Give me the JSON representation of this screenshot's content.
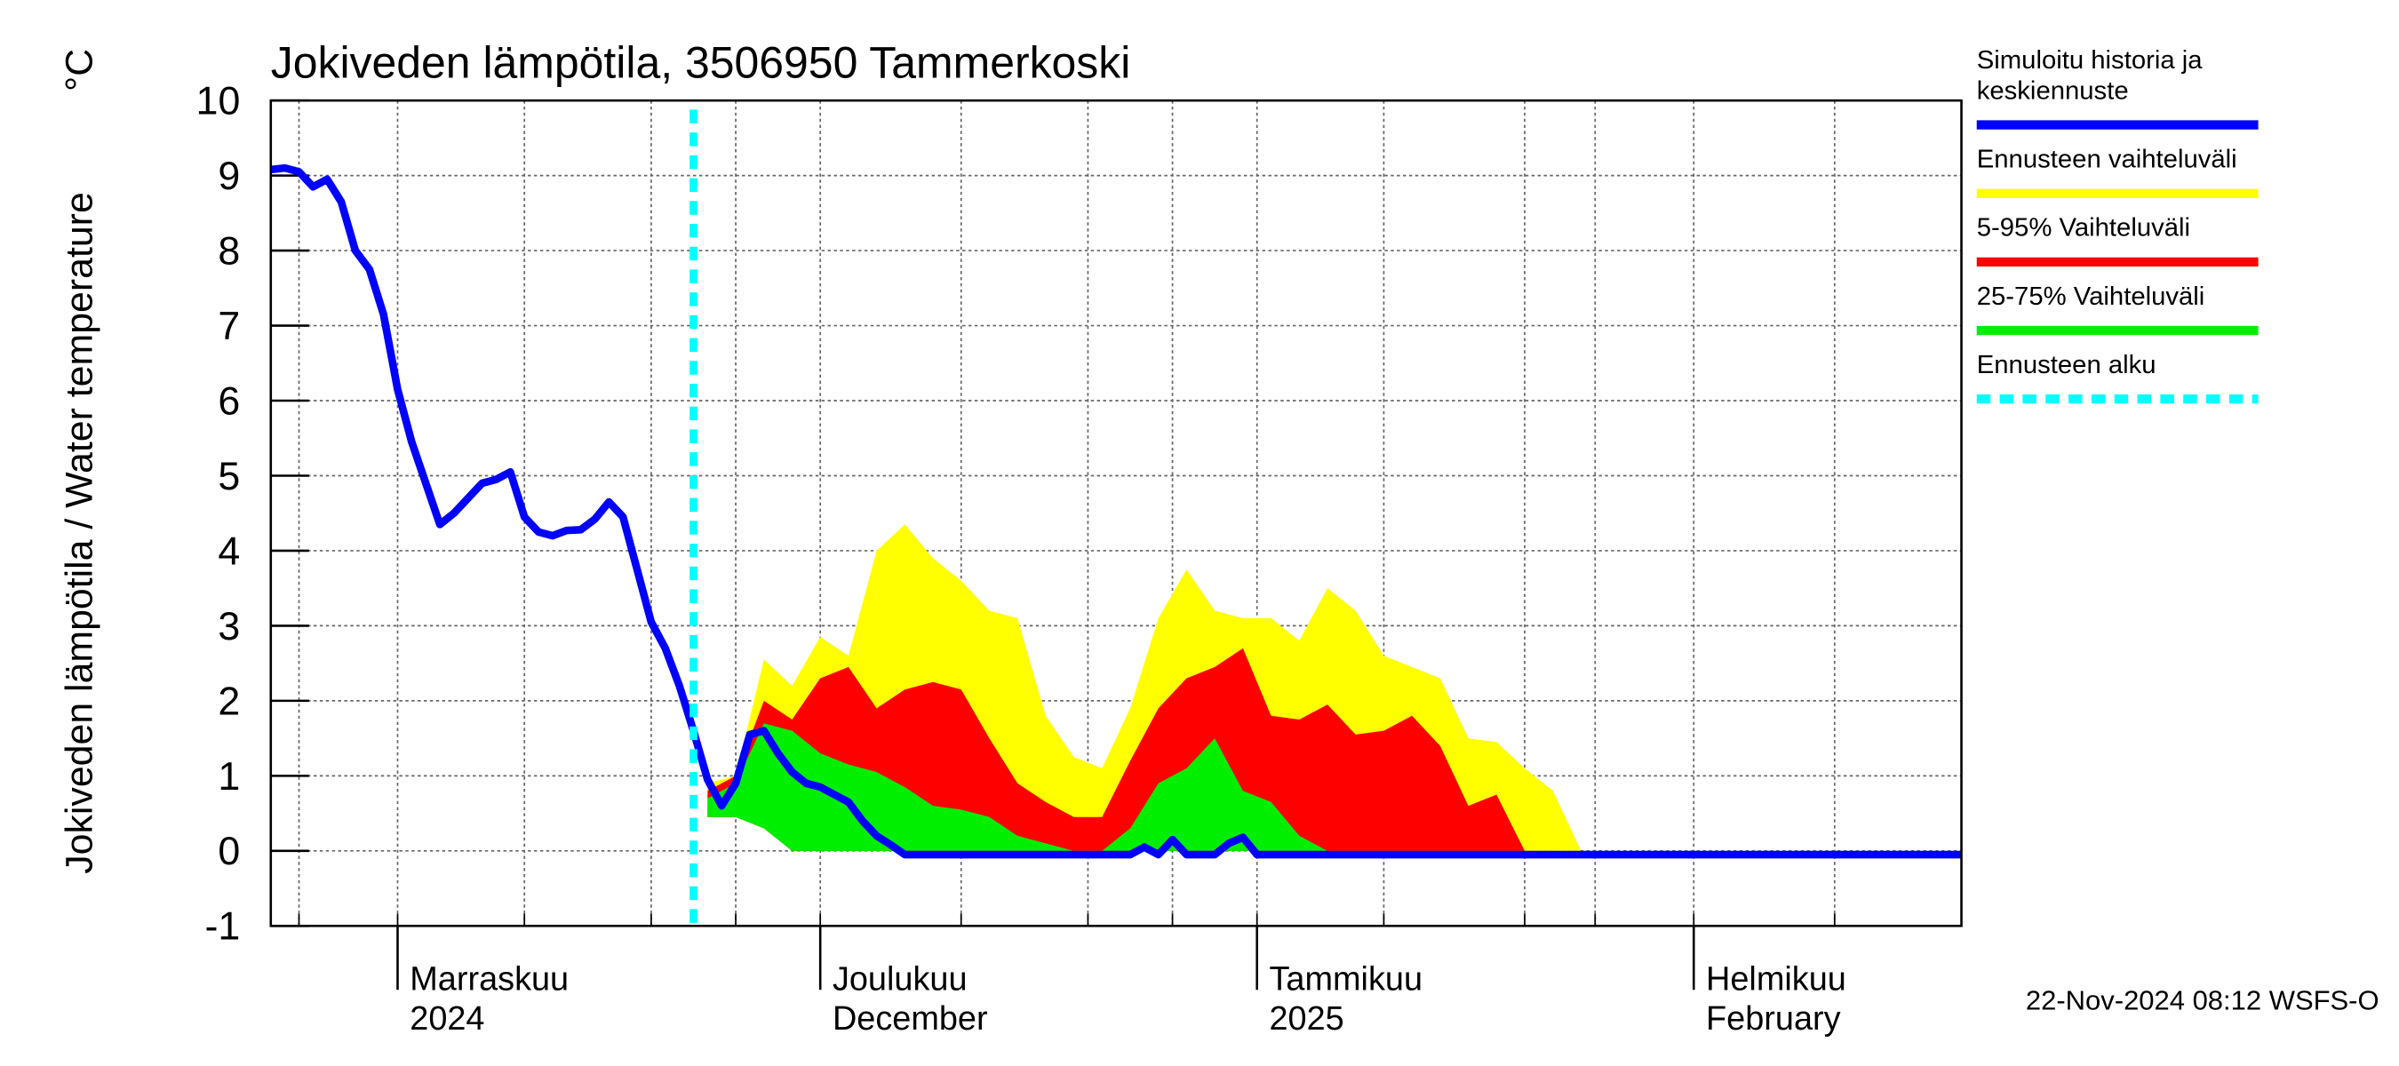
{
  "chart_data": {
    "type": "line",
    "title": "Jokiveden lämpötila, 3506950 Tammerkoski",
    "ylabel": "Jokiveden lämpötila / Water temperature",
    "yunit": "°C",
    "footer": "22-Nov-2024 08:12 WSFS-O",
    "ylim": [
      -1,
      10
    ],
    "yticks": [
      -1,
      0,
      1,
      2,
      3,
      4,
      5,
      6,
      7,
      8,
      9,
      10
    ],
    "xlim": [
      0,
      120
    ],
    "xticks": [
      {
        "value": 9,
        "label": "Marraskuu",
        "label2": "2024"
      },
      {
        "value": 39,
        "label": "Joulukuu",
        "label2": "December"
      },
      {
        "value": 70,
        "label": "Tammikuu",
        "label2": "2025"
      },
      {
        "value": 101,
        "label": "Helmikuu",
        "label2": "February"
      }
    ],
    "xgrid": [
      2,
      9,
      18,
      27,
      33,
      39,
      49,
      58,
      64,
      70,
      79,
      89,
      94,
      101,
      111
    ],
    "grid": true,
    "forecast_start": {
      "name": "Ennusteen alku",
      "color": "#00ffff",
      "x": 30
    },
    "series": [
      {
        "name": "Simuloitu historia ja keskiennuste",
        "color": "#0000ff",
        "x": [
          0,
          1,
          2,
          3,
          4,
          5,
          6,
          7,
          8,
          9,
          10,
          11,
          12,
          13,
          14,
          15,
          16,
          17,
          18,
          19,
          20,
          21,
          22,
          23,
          24,
          25,
          26,
          27,
          28,
          29,
          30,
          31,
          32,
          33,
          34,
          35,
          36,
          37,
          38,
          39,
          40,
          41,
          42,
          43,
          44,
          45,
          46,
          47,
          48,
          49,
          50,
          51,
          52,
          53,
          54,
          55,
          56,
          57,
          58,
          59,
          60,
          61,
          62,
          63,
          64,
          65,
          66,
          67,
          68,
          69,
          70,
          80,
          90,
          100,
          110,
          120
        ],
        "values": [
          9.08,
          9.1,
          9.05,
          8.85,
          8.95,
          8.65,
          8.0,
          7.75,
          7.15,
          6.15,
          5.45,
          4.9,
          4.35,
          4.5,
          4.7,
          4.9,
          4.95,
          5.05,
          4.45,
          4.25,
          4.2,
          4.27,
          4.28,
          4.42,
          4.65,
          4.45,
          3.75,
          3.05,
          2.7,
          2.2,
          1.6,
          0.95,
          0.6,
          0.9,
          1.55,
          1.6,
          1.3,
          1.05,
          0.9,
          0.85,
          0.75,
          0.65,
          0.4,
          0.2,
          0.08,
          -0.05,
          -0.05,
          -0.05,
          -0.05,
          -0.05,
          -0.05,
          -0.05,
          -0.05,
          -0.05,
          -0.05,
          -0.05,
          -0.05,
          -0.05,
          -0.05,
          -0.05,
          -0.05,
          -0.05,
          0.05,
          -0.05,
          0.15,
          -0.05,
          -0.05,
          -0.05,
          0.1,
          0.18,
          -0.05,
          -0.05,
          -0.05,
          -0.05,
          -0.05,
          -0.05
        ]
      },
      {
        "name": "Ennusteen vaihteluväli",
        "color": "#ffff00",
        "band": true,
        "x": [
          31,
          33,
          35,
          37,
          39,
          41,
          43,
          45,
          47,
          49,
          51,
          53,
          55,
          57,
          59,
          61,
          63,
          65,
          67,
          69,
          71,
          73,
          75,
          77,
          79,
          81,
          83,
          85,
          87,
          89,
          91,
          93
        ],
        "high": [
          0.9,
          1.0,
          2.55,
          2.2,
          2.85,
          2.6,
          4.0,
          4.35,
          3.9,
          3.6,
          3.2,
          3.1,
          1.8,
          1.25,
          1.1,
          1.9,
          3.1,
          3.75,
          3.2,
          3.1,
          3.1,
          2.8,
          3.5,
          3.2,
          2.6,
          2.45,
          2.3,
          1.5,
          1.45,
          1.1,
          0.8,
          0
        ],
        "low": [
          0.45,
          0.45,
          0.3,
          0,
          0,
          0,
          0,
          0,
          0,
          0,
          0,
          0,
          0,
          0,
          0,
          0,
          0,
          0,
          0,
          0,
          0,
          0,
          0,
          0,
          0,
          0,
          0,
          0,
          0,
          0,
          0,
          0
        ]
      },
      {
        "name": "5-95% Vaihteluväli",
        "color": "#ff0000",
        "band": true,
        "x": [
          31,
          33,
          35,
          37,
          39,
          41,
          43,
          45,
          47,
          49,
          51,
          53,
          55,
          57,
          59,
          61,
          63,
          65,
          67,
          69,
          71,
          73,
          75,
          77,
          79,
          81,
          83,
          85,
          87,
          89,
          91,
          93
        ],
        "high": [
          0.8,
          1.0,
          2.0,
          1.75,
          2.3,
          2.45,
          1.9,
          2.15,
          2.25,
          2.15,
          1.5,
          0.9,
          0.65,
          0.45,
          0.45,
          1.2,
          1.9,
          2.3,
          2.45,
          2.7,
          1.8,
          1.75,
          1.95,
          1.55,
          1.6,
          1.8,
          1.4,
          0.6,
          0.75,
          0,
          0,
          0
        ],
        "low": [
          0.45,
          0.45,
          0.3,
          0,
          0,
          0,
          0,
          0,
          0,
          0,
          0,
          0,
          0,
          0,
          0,
          0,
          0,
          0,
          0,
          0,
          0,
          0,
          0,
          0,
          0,
          0,
          0,
          0,
          0,
          0,
          0,
          0
        ]
      },
      {
        "name": "25-75% Vaihteluväli",
        "color": "#00ee00",
        "band": true,
        "x": [
          31,
          33,
          35,
          37,
          39,
          41,
          43,
          45,
          47,
          49,
          51,
          53,
          55,
          57,
          59,
          61,
          63,
          65,
          67,
          69,
          71,
          73,
          75,
          77,
          79,
          81,
          83,
          85,
          87,
          89,
          91,
          93
        ],
        "high": [
          0.7,
          0.9,
          1.7,
          1.6,
          1.3,
          1.15,
          1.05,
          0.85,
          0.6,
          0.55,
          0.45,
          0.2,
          0.1,
          0,
          0,
          0.3,
          0.9,
          1.1,
          1.5,
          0.8,
          0.65,
          0.2,
          0,
          0,
          0,
          0,
          0,
          0,
          0,
          0,
          0,
          0
        ],
        "low": [
          0.45,
          0.45,
          0.3,
          0,
          0,
          0,
          0,
          0,
          0,
          0,
          0,
          0,
          0,
          0,
          0,
          0,
          0,
          0,
          0,
          0,
          0,
          0,
          0,
          0,
          0,
          0,
          0,
          0,
          0,
          0,
          0,
          0
        ]
      }
    ]
  }
}
